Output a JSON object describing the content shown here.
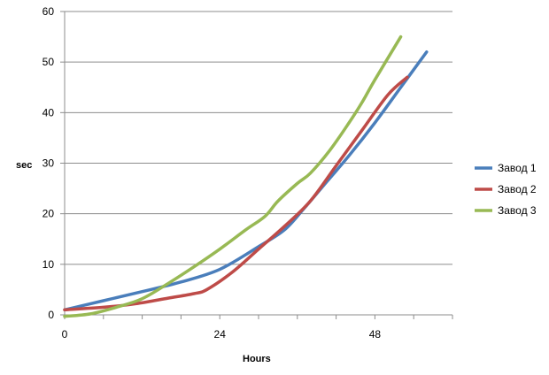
{
  "chart_data": {
    "type": "line",
    "xlabel": "Hours",
    "ylabel": "sec",
    "xlim": [
      0,
      60
    ],
    "ylim": [
      0,
      60
    ],
    "x_ticks": [
      0,
      24,
      48
    ],
    "y_ticks": [
      0,
      10,
      20,
      30,
      40,
      50,
      60
    ],
    "grid": "horizontal",
    "legend": "right",
    "series": [
      {
        "name": "Завод 1",
        "color": "#4a7ebb",
        "x": [
          0,
          6,
          12,
          18,
          24,
          30,
          34,
          37,
          40,
          44,
          48,
          52,
          56
        ],
        "y": [
          1,
          2.8,
          4.6,
          6.5,
          9,
          13.5,
          16.8,
          21,
          25.5,
          31.5,
          38,
          45,
          52
        ]
      },
      {
        "name": "Завод 2",
        "color": "#be4b48",
        "x": [
          0,
          6,
          11,
          16,
          20,
          22,
          26,
          30,
          34,
          38,
          42,
          46,
          50,
          53
        ],
        "y": [
          1,
          1.5,
          2.2,
          3.3,
          4.2,
          5,
          8.5,
          13,
          17.5,
          22.5,
          29.5,
          36.5,
          43.5,
          47
        ]
      },
      {
        "name": "Завод 3",
        "color": "#98b954",
        "x": [
          0,
          4,
          8,
          12,
          16,
          20,
          24,
          28,
          31,
          33,
          36,
          38,
          41,
          44,
          46,
          48,
          52
        ],
        "y": [
          -0.3,
          0.2,
          1.5,
          3.2,
          6.2,
          9.5,
          13,
          16.8,
          19.5,
          22.5,
          26,
          28,
          32.5,
          38,
          42,
          46.5,
          55
        ]
      }
    ]
  }
}
